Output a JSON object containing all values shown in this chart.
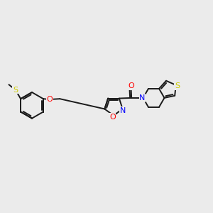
{
  "bg_color": "#ebebeb",
  "bond_color": "#1a1a1a",
  "O_color": "#ff0000",
  "N_color": "#0000ff",
  "S_color": "#cccc00",
  "lw": 1.4,
  "dbo": 0.06,
  "fs": 7.5,
  "figsize": [
    3.0,
    3.0
  ],
  "dpi": 100,
  "xlim": [
    -4.5,
    4.5
  ],
  "ylim": [
    -2.5,
    2.5
  ]
}
